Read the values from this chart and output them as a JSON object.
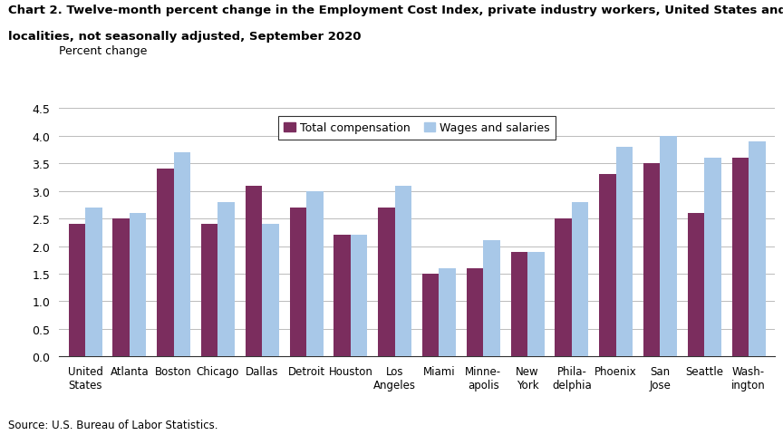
{
  "title_line1": "Chart 2. Twelve-month percent change in the Employment Cost Index, private industry workers, United States and",
  "title_line2": "localities, not seasonally adjusted, September 2020",
  "ylabel": "Percent change",
  "source": "Source: U.S. Bureau of Labor Statistics.",
  "categories": [
    "United\nStates",
    "Atlanta",
    "Boston",
    "Chicago",
    "Dallas",
    "Detroit",
    "Houston",
    "Los\nAngeles",
    "Miami",
    "Minne-\napolis",
    "New\nYork",
    "Phila-\ndelphia",
    "Phoenix",
    "San\nJose",
    "Seattle",
    "Wash-\nington"
  ],
  "total_compensation": [
    2.4,
    2.5,
    3.4,
    2.4,
    3.1,
    2.7,
    2.2,
    2.7,
    1.5,
    1.6,
    1.9,
    2.5,
    3.3,
    3.5,
    2.6,
    3.6
  ],
  "wages_and_salaries": [
    2.7,
    2.6,
    3.7,
    2.8,
    2.4,
    3.0,
    2.2,
    3.1,
    1.6,
    2.1,
    1.9,
    2.8,
    3.8,
    4.0,
    3.6,
    3.9
  ],
  "color_total": "#7b2d5e",
  "color_wages": "#a8c8e8",
  "ylim": [
    0,
    4.5
  ],
  "yticks": [
    0.0,
    0.5,
    1.0,
    1.5,
    2.0,
    2.5,
    3.0,
    3.5,
    4.0,
    4.5
  ],
  "legend_labels": [
    "Total compensation",
    "Wages and salaries"
  ],
  "bar_width": 0.38
}
